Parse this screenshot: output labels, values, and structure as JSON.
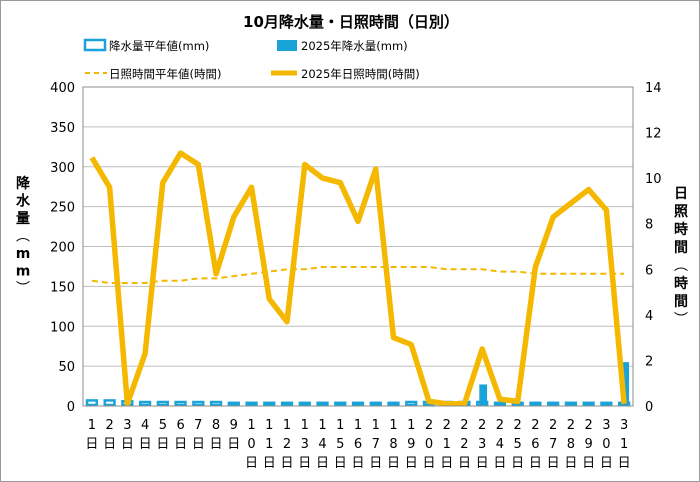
{
  "chart_data": {
    "type": "bar+line",
    "title": "10月降水量・日照時間（日別）",
    "ylabel_left": "降水量（mm）",
    "ylabel_right": "日照時間（時間）",
    "ylim_left": [
      0,
      400
    ],
    "ylim_right": [
      0,
      14
    ],
    "yticks_left": [
      "0",
      "50",
      "100",
      "150",
      "200",
      "250",
      "300",
      "350",
      "400"
    ],
    "yticks_right": [
      "0",
      "2",
      "4",
      "6",
      "8",
      "10",
      "12",
      "14"
    ],
    "categories": [
      "1日",
      "2日",
      "3日",
      "4日",
      "5日",
      "6日",
      "7日",
      "8日",
      "9日",
      "10日",
      "11日",
      "12日",
      "13日",
      "14日",
      "15日",
      "16日",
      "17日",
      "18日",
      "19日",
      "20日",
      "21日",
      "22日",
      "23日",
      "24日",
      "25日",
      "26日",
      "27日",
      "28日",
      "29日",
      "30日",
      "31日"
    ],
    "grid": true,
    "series": [
      {
        "name": "降水量平年値(mm)",
        "type": "bar",
        "axis": "left",
        "color": "#1aa3d9",
        "values": [
          7,
          7,
          6,
          5,
          5,
          5,
          5,
          5,
          4,
          4,
          4,
          4,
          4,
          4,
          4,
          4,
          4,
          4,
          5,
          5,
          5,
          5,
          5,
          4,
          4,
          4,
          4,
          4,
          4,
          4,
          4
        ]
      },
      {
        "name": "2025年降水量(mm)",
        "type": "bar",
        "axis": "left",
        "color": "#1aa3d9",
        "values": [
          0,
          0,
          0,
          0,
          0,
          0,
          0,
          0,
          0,
          0,
          0,
          0,
          0,
          0,
          0,
          0,
          0,
          0,
          1,
          4,
          4,
          5,
          27,
          0,
          1,
          0,
          0,
          0,
          0,
          2,
          55
        ]
      },
      {
        "name": "日照時間平年値(時間)",
        "type": "line",
        "axis": "right",
        "color": "#f5b800",
        "values": [
          5.5,
          5.4,
          5.4,
          5.4,
          5.5,
          5.5,
          5.6,
          5.6,
          5.7,
          5.8,
          5.9,
          6.0,
          6.0,
          6.1,
          6.1,
          6.1,
          6.1,
          6.1,
          6.1,
          6.1,
          6.0,
          6.0,
          6.0,
          5.9,
          5.9,
          5.8,
          5.8,
          5.8,
          5.8,
          5.8,
          5.8
        ]
      },
      {
        "name": "2025年日照時間(時間)",
        "type": "line",
        "axis": "right",
        "color": "#f5b800",
        "values": [
          10.9,
          9.6,
          0.1,
          2.3,
          9.8,
          11.1,
          10.6,
          5.8,
          8.3,
          9.6,
          4.7,
          3.7,
          10.6,
          10.0,
          9.8,
          8.1,
          10.4,
          3.0,
          2.7,
          0.2,
          0.1,
          0.1,
          2.5,
          0.3,
          0.2,
          6.1,
          8.3,
          8.9,
          9.5,
          8.6,
          0.1
        ]
      }
    ]
  }
}
